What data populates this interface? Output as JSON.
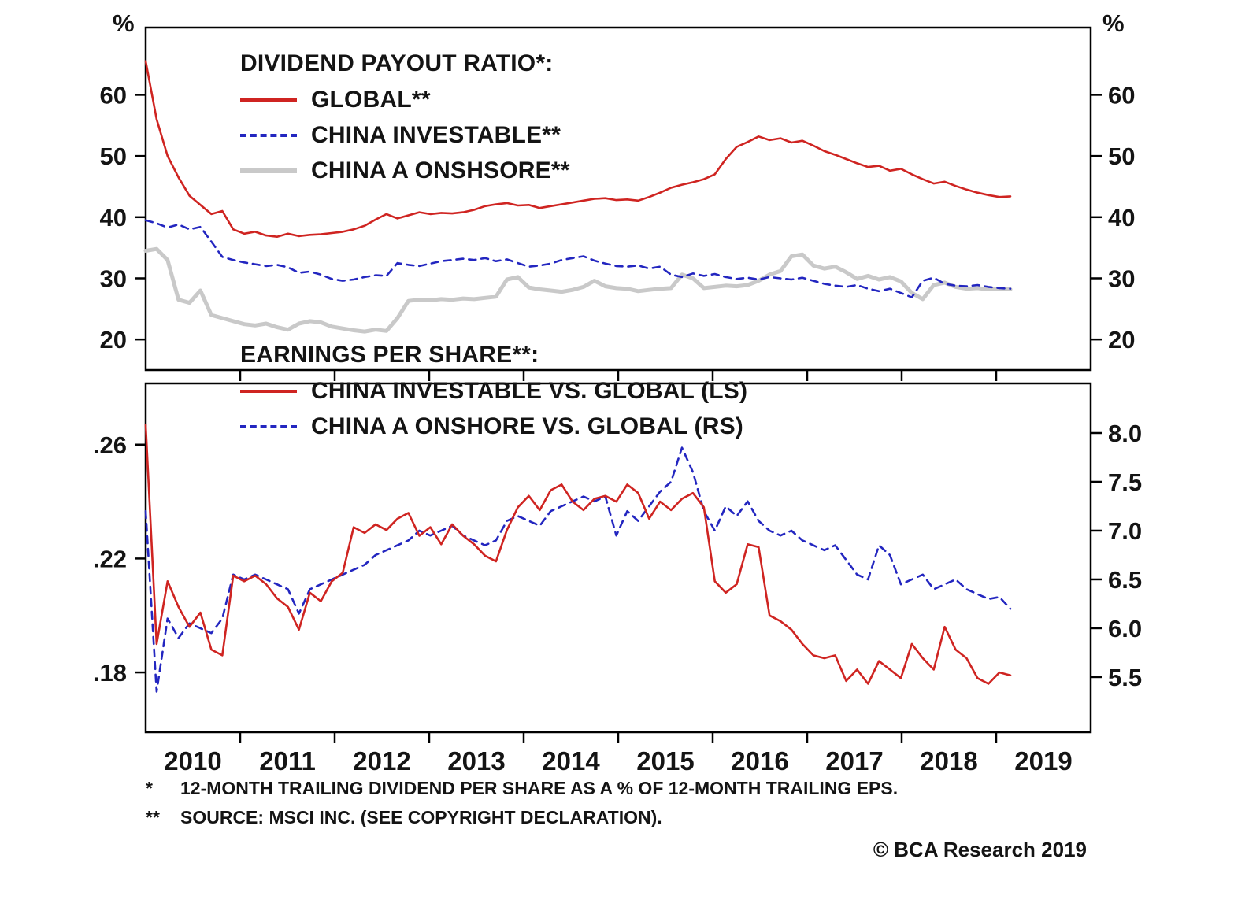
{
  "axis_units": {
    "left": "%",
    "right": "%"
  },
  "footnotes": [
    {
      "marker": "*",
      "text": "12-MONTH TRAILING DIVIDEND PER SHARE AS A % OF 12-MONTH TRAILING EPS."
    },
    {
      "marker": "**",
      "text": "SOURCE: MSCI INC. (SEE COPYRIGHT DECLARATION)."
    }
  ],
  "credit": "© BCA Research 2019",
  "chart_data": [
    {
      "type": "line",
      "title": "DIVIDEND PAYOUT RATIO*:",
      "x_start": 2010.0,
      "x_end": 2019.15,
      "xlim": [
        2010,
        2020
      ],
      "x_ticks": [
        2011,
        2012,
        2013,
        2014,
        2015,
        2016,
        2017,
        2018,
        2019
      ],
      "axes": {
        "left": {
          "lim": [
            15,
            71
          ],
          "ticks": [
            20,
            30,
            40,
            50,
            60
          ],
          "labels": [
            "20",
            "30",
            "40",
            "50",
            "60"
          ]
        },
        "right": {
          "lim": [
            15,
            71
          ],
          "ticks": [
            20,
            30,
            40,
            50,
            60
          ],
          "labels": [
            "20",
            "30",
            "40",
            "50",
            "60"
          ]
        }
      },
      "series": [
        {
          "name": "GLOBAL**",
          "axis": "left",
          "color": "#cf2421",
          "dash": "",
          "width": 2.6,
          "values": [
            65.5,
            56,
            50,
            46.5,
            43.5,
            42,
            40.5,
            41,
            38,
            37.3,
            37.6,
            37,
            36.8,
            37.3,
            36.9,
            37.1,
            37.2,
            37.4,
            37.6,
            38,
            38.6,
            39.6,
            40.5,
            39.8,
            40.3,
            40.8,
            40.5,
            40.7,
            40.6,
            40.8,
            41.2,
            41.8,
            42.1,
            42.3,
            41.9,
            42,
            41.5,
            41.8,
            42.1,
            42.4,
            42.7,
            43,
            43.1,
            42.8,
            42.9,
            42.7,
            43.3,
            44,
            44.8,
            45.3,
            45.7,
            46.2,
            47,
            49.5,
            51.5,
            52.3,
            53.2,
            52.6,
            52.9,
            52.2,
            52.5,
            51.7,
            50.8,
            50.2,
            49.5,
            48.8,
            48.2,
            48.4,
            47.6,
            47.9,
            47,
            46.2,
            45.5,
            45.8,
            45.1,
            44.5,
            44,
            43.6,
            43.3,
            43.4
          ]
        },
        {
          "name": "CHINA INVESTABLE**",
          "axis": "left",
          "color": "#2326c0",
          "dash": "9 7",
          "width": 2.6,
          "values": [
            39.5,
            39,
            38.3,
            38.8,
            38,
            38.4,
            36,
            33.5,
            33,
            32.6,
            32.3,
            32,
            32.2,
            31.8,
            30.9,
            31.1,
            30.6,
            29.9,
            29.6,
            29.8,
            30.2,
            30.5,
            30.4,
            32.5,
            32.2,
            32,
            32.4,
            32.8,
            33,
            33.2,
            33,
            33.3,
            32.8,
            33.1,
            32.5,
            31.9,
            32.1,
            32.4,
            33,
            33.3,
            33.6,
            32.9,
            32.4,
            32,
            31.9,
            32.1,
            31.6,
            31.9,
            30.6,
            30.2,
            30.8,
            30.4,
            30.7,
            30.2,
            29.9,
            30.1,
            29.8,
            30.2,
            30,
            29.8,
            30.1,
            29.6,
            29.1,
            28.8,
            28.6,
            28.9,
            28.3,
            27.9,
            28.3,
            27.6,
            26.9,
            29.6,
            30.1,
            29.1,
            28.8,
            28.7,
            28.9,
            28.6,
            28.4,
            28.3
          ]
        },
        {
          "name": "CHINA A ONSHSORE**",
          "axis": "left",
          "color": "#c9c9c9",
          "dash": "",
          "width": 5,
          "values": [
            34.5,
            34.8,
            33,
            26.5,
            26,
            28,
            24,
            23.5,
            23,
            22.5,
            22.3,
            22.6,
            22,
            21.6,
            22.6,
            23,
            22.8,
            22.1,
            21.8,
            21.5,
            21.3,
            21.6,
            21.4,
            23.5,
            26.3,
            26.5,
            26.4,
            26.6,
            26.5,
            26.7,
            26.6,
            26.8,
            27,
            29.8,
            30.2,
            28.5,
            28.2,
            28,
            27.8,
            28.1,
            28.6,
            29.6,
            28.7,
            28.4,
            28.3,
            27.9,
            28.1,
            28.3,
            28.4,
            30.6,
            30,
            28.4,
            28.6,
            28.8,
            28.7,
            28.9,
            29.6,
            30.6,
            31.2,
            33.6,
            33.9,
            32.1,
            31.6,
            31.9,
            31,
            29.9,
            30.4,
            29.8,
            30.2,
            29.5,
            27.6,
            26.6,
            28.9,
            29.3,
            28.6,
            28.3,
            28.4,
            28.2,
            28.3,
            28.2
          ]
        }
      ]
    },
    {
      "type": "line",
      "title": "EARNINGS PER SHARE**:",
      "x_start": 2010.0,
      "x_end": 2019.15,
      "xlim": [
        2010,
        2020
      ],
      "x_ticks": [
        2011,
        2012,
        2013,
        2014,
        2015,
        2016,
        2017,
        2018,
        2019
      ],
      "year_labels": [
        {
          "text": "2010",
          "x": 2010.5
        },
        {
          "text": "2011",
          "x": 2011.5
        },
        {
          "text": "2012",
          "x": 2012.5
        },
        {
          "text": "2013",
          "x": 2013.5
        },
        {
          "text": "2014",
          "x": 2014.5
        },
        {
          "text": "2015",
          "x": 2015.5
        },
        {
          "text": "2016",
          "x": 2016.5
        },
        {
          "text": "2017",
          "x": 2017.5
        },
        {
          "text": "2018",
          "x": 2018.5
        },
        {
          "text": "2019",
          "x": 2019.5
        }
      ],
      "axes": {
        "left": {
          "lim": [
            0.159,
            0.2815
          ],
          "ticks": [
            0.26,
            0.22,
            0.18
          ],
          "labels": [
            ".26",
            ".22",
            ".18"
          ]
        },
        "right": {
          "lim": [
            4.935,
            8.508
          ],
          "ticks": [
            8.0,
            7.5,
            7.0,
            6.5,
            6.0,
            5.5
          ],
          "labels": [
            "8.0",
            "7.5",
            "7.0",
            "6.5",
            "6.0",
            "5.5"
          ]
        }
      },
      "series": [
        {
          "name": "CHINA INVESTABLE VS. GLOBAL (LS)",
          "axis": "left",
          "color": "#cf2421",
          "dash": "",
          "width": 2.6,
          "values": [
            0.267,
            0.19,
            0.212,
            0.203,
            0.196,
            0.201,
            0.188,
            0.186,
            0.214,
            0.212,
            0.214,
            0.211,
            0.206,
            0.203,
            0.195,
            0.208,
            0.205,
            0.212,
            0.215,
            0.231,
            0.229,
            0.232,
            0.23,
            0.234,
            0.236,
            0.228,
            0.231,
            0.225,
            0.232,
            0.228,
            0.225,
            0.221,
            0.219,
            0.23,
            0.238,
            0.242,
            0.237,
            0.244,
            0.246,
            0.24,
            0.237,
            0.241,
            0.242,
            0.24,
            0.246,
            0.243,
            0.234,
            0.24,
            0.237,
            0.241,
            0.243,
            0.238,
            0.212,
            0.208,
            0.211,
            0.225,
            0.224,
            0.2,
            0.198,
            0.195,
            0.19,
            0.186,
            0.185,
            0.186,
            0.177,
            0.181,
            0.176,
            0.184,
            0.181,
            0.178,
            0.19,
            0.185,
            0.181,
            0.196,
            0.188,
            0.185,
            0.178,
            0.176,
            0.18,
            0.179
          ]
        },
        {
          "name": "CHINA A ONSHORE VS. GLOBAL (RS)",
          "axis": "right",
          "color": "#2326c0",
          "dash": "9 7",
          "width": 2.6,
          "values": [
            7.2,
            5.35,
            6.1,
            5.9,
            6.05,
            6,
            5.95,
            6.1,
            6.55,
            6.5,
            6.55,
            6.5,
            6.45,
            6.4,
            6.15,
            6.4,
            6.45,
            6.5,
            6.55,
            6.6,
            6.65,
            6.75,
            6.8,
            6.85,
            6.9,
            7,
            6.95,
            7,
            7.05,
            6.95,
            6.9,
            6.85,
            6.9,
            7.1,
            7.15,
            7.1,
            7.05,
            7.2,
            7.25,
            7.3,
            7.35,
            7.3,
            7.35,
            6.95,
            7.2,
            7.1,
            7.25,
            7.4,
            7.5,
            7.85,
            7.6,
            7.2,
            7,
            7.25,
            7.15,
            7.3,
            7.1,
            7,
            6.95,
            7,
            6.9,
            6.85,
            6.8,
            6.85,
            6.7,
            6.55,
            6.5,
            6.85,
            6.75,
            6.45,
            6.5,
            6.55,
            6.4,
            6.45,
            6.5,
            6.4,
            6.35,
            6.3,
            6.32,
            6.2
          ]
        }
      ]
    }
  ]
}
